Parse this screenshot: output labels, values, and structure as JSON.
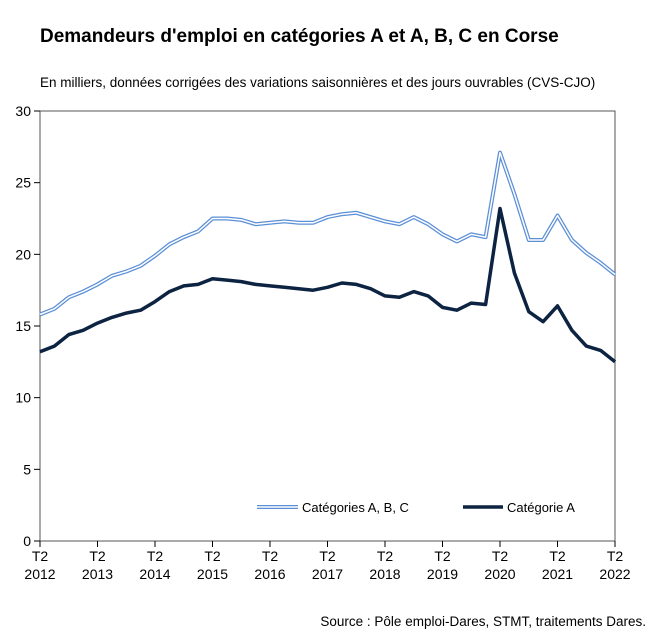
{
  "title": "Demandeurs d'emploi en catégories A et A, B, C en Corse",
  "subtitle": "En milliers, données corrigées des variations saisonnières et des jours ouvrables (CVS-CJO)",
  "source": "Source : Pôle emploi-Dares, STMT, traitements Dares.",
  "colors": {
    "abc": "#5b8fd6",
    "a": "#0d2342",
    "axis": "#000000"
  },
  "chart_data": {
    "type": "line",
    "ylim": [
      0,
      30
    ],
    "yticks": [
      0,
      5,
      10,
      15,
      20,
      25,
      30
    ],
    "grid": false,
    "legend_position": "bottom-right",
    "x_tick_labels": [
      {
        "q": "T2",
        "year": "2012"
      },
      {
        "q": "T2",
        "year": "2013"
      },
      {
        "q": "T2",
        "year": "2014"
      },
      {
        "q": "T2",
        "year": "2015"
      },
      {
        "q": "T2",
        "year": "2016"
      },
      {
        "q": "T2",
        "year": "2017"
      },
      {
        "q": "T2",
        "year": "2018"
      },
      {
        "q": "T2",
        "year": "2019"
      },
      {
        "q": "T2",
        "year": "2020"
      },
      {
        "q": "T2",
        "year": "2021"
      },
      {
        "q": "T2",
        "year": "2022"
      }
    ],
    "x": [
      "T2 2012",
      "T3 2012",
      "T4 2012",
      "T1 2013",
      "T2 2013",
      "T3 2013",
      "T4 2013",
      "T1 2014",
      "T2 2014",
      "T3 2014",
      "T4 2014",
      "T1 2015",
      "T2 2015",
      "T3 2015",
      "T4 2015",
      "T1 2016",
      "T2 2016",
      "T3 2016",
      "T4 2016",
      "T1 2017",
      "T2 2017",
      "T3 2017",
      "T4 2017",
      "T1 2018",
      "T2 2018",
      "T3 2018",
      "T4 2018",
      "T1 2019",
      "T2 2019",
      "T3 2019",
      "T4 2019",
      "T1 2020",
      "T2 2020",
      "T3 2020",
      "T4 2020",
      "T1 2021",
      "T2 2021",
      "T3 2021",
      "T4 2021",
      "T1 2022",
      "T2 2022"
    ],
    "series": [
      {
        "name": "Catégories A, B, C",
        "style": "double-line",
        "values": [
          15.8,
          16.2,
          17.0,
          17.4,
          17.9,
          18.5,
          18.8,
          19.2,
          19.9,
          20.7,
          21.2,
          21.6,
          22.5,
          22.5,
          22.4,
          22.1,
          22.2,
          22.3,
          22.2,
          22.2,
          22.6,
          22.8,
          22.9,
          22.6,
          22.3,
          22.1,
          22.6,
          22.1,
          21.4,
          20.9,
          21.4,
          21.2,
          27.1,
          24.2,
          21.0,
          21.0,
          22.7,
          21.0,
          20.1,
          19.4,
          18.6
        ]
      },
      {
        "name": "Catégorie A",
        "style": "thick-line",
        "values": [
          13.2,
          13.6,
          14.4,
          14.7,
          15.2,
          15.6,
          15.9,
          16.1,
          16.7,
          17.4,
          17.8,
          17.9,
          18.3,
          18.2,
          18.1,
          17.9,
          17.8,
          17.7,
          17.6,
          17.5,
          17.7,
          18.0,
          17.9,
          17.6,
          17.1,
          17.0,
          17.4,
          17.1,
          16.3,
          16.1,
          16.6,
          16.5,
          23.2,
          18.7,
          16.0,
          15.3,
          16.4,
          14.7,
          13.6,
          13.3,
          12.5
        ]
      }
    ]
  }
}
